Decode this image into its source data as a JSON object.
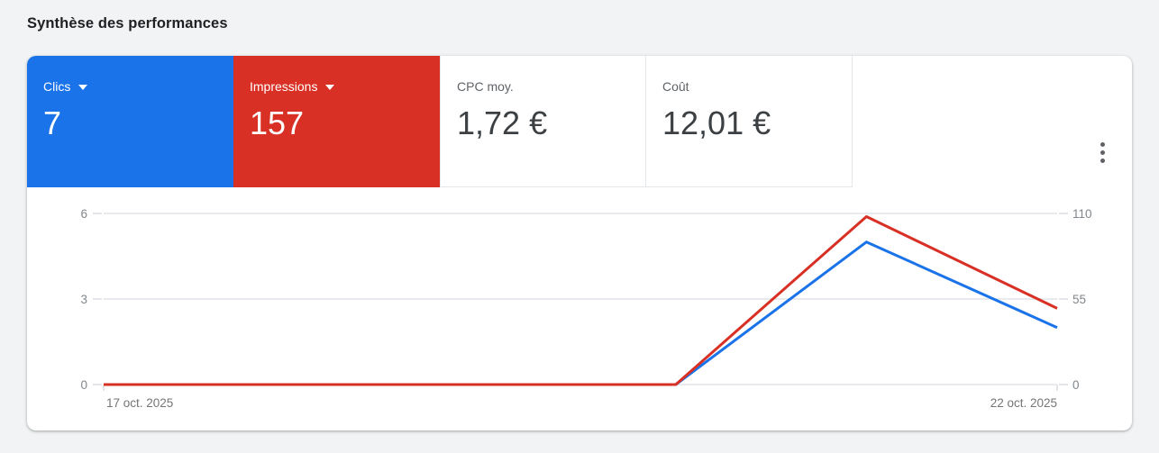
{
  "page": {
    "title": "Synthèse des performances"
  },
  "colors": {
    "accent_blue": "#1a73e8",
    "accent_red": "#d93025",
    "grid_line": "#e8eaed",
    "tick_stub": "#dadce0",
    "axis_text": "#80868b",
    "date_text": "#757575",
    "card_bg": "#ffffff",
    "page_bg": "#f1f3f4"
  },
  "tiles": [
    {
      "label": "Clics",
      "value": "7",
      "bg": "#1a73e8",
      "has_dropdown": true
    },
    {
      "label": "Impressions",
      "value": "157",
      "bg": "#d93025",
      "has_dropdown": true
    },
    {
      "label": "CPC moy.",
      "value": "1,72 €",
      "has_dropdown": false
    },
    {
      "label": "Coût",
      "value": "12,01 €",
      "has_dropdown": false
    }
  ],
  "icons": {
    "dropdown": "triangle-down",
    "more_options": "kebab-vertical"
  },
  "chart_data": {
    "type": "line",
    "num_points": 6,
    "x_tick_labels": [
      "17 oct. 2025",
      "22 oct. 2025"
    ],
    "left_axis": {
      "ticks": [
        0,
        3,
        6
      ],
      "range": [
        0,
        6
      ]
    },
    "right_axis": {
      "ticks": [
        0,
        55,
        110
      ],
      "range": [
        0,
        110
      ]
    },
    "series": [
      {
        "name": "Clics",
        "axis": "left",
        "color": "#1a73e8",
        "values": [
          0,
          0,
          0,
          0,
          5,
          2
        ]
      },
      {
        "name": "Impressions",
        "axis": "right",
        "color": "#d93025",
        "values": [
          0,
          0,
          0,
          0,
          108,
          49
        ]
      }
    ],
    "grid": true,
    "legend": false
  }
}
